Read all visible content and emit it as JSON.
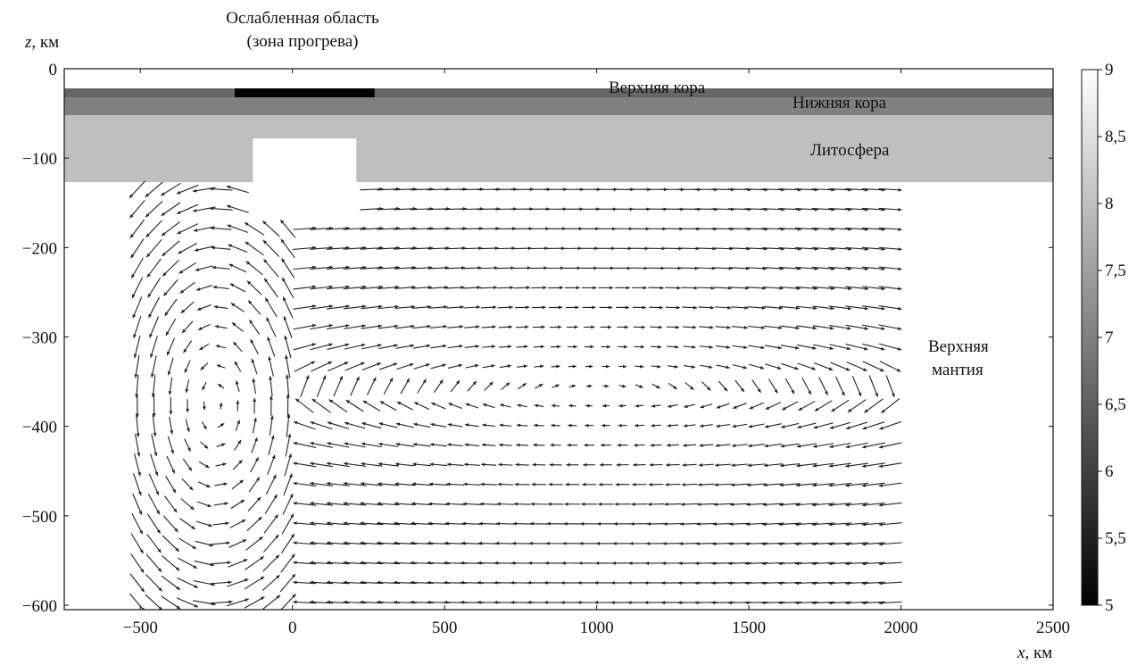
{
  "chart_data": {
    "type": "heatmap",
    "xlabel": {
      "var": "x",
      "unit": ", км"
    },
    "ylabel": {
      "var": "z",
      "unit": ", км"
    },
    "xlim": [
      -750,
      2500
    ],
    "ylim": [
      -605,
      0
    ],
    "x_ticks": [
      -500,
      0,
      500,
      1000,
      1500,
      2000,
      2500
    ],
    "x_tick_labels": [
      "−500",
      "0",
      "500",
      "1000",
      "1500",
      "2000",
      "2500"
    ],
    "y_ticks": [
      0,
      -100,
      -200,
      -300,
      -400,
      -500,
      -600
    ],
    "y_tick_labels": [
      "0",
      "−100",
      "−200",
      "−300",
      "−400",
      "−500",
      "−600"
    ],
    "colorbar": {
      "range": [
        5,
        9
      ],
      "ticks": [
        5,
        5.5,
        6,
        6.5,
        7,
        7.5,
        8,
        8.5,
        9
      ],
      "tick_labels": [
        "5",
        "5,5",
        "6",
        "6,5",
        "7",
        "7,5",
        "8",
        "8,5",
        "9"
      ]
    },
    "layers": [
      {
        "name": "Верхняя кора",
        "top": -22,
        "bottom": -32,
        "value": 6.6
      },
      {
        "name": "Нижняя кора",
        "top": -32,
        "bottom": -52,
        "value": 7.0
      },
      {
        "name": "Литосфера",
        "top": -52,
        "bottom": -127,
        "value": 8.0
      },
      {
        "name": "Верхняя мантия",
        "top": -127,
        "bottom": -605,
        "value": 9.0
      }
    ],
    "weak_zone": {
      "x": [
        -190,
        270
      ],
      "top": -22,
      "bottom": -32,
      "value": 5.0
    },
    "plume": {
      "x": [
        -130,
        210
      ],
      "top": -78,
      "bottom": -127,
      "value": 9.0
    },
    "annotations": [
      {
        "text": "Ослабленная область",
        "x": 30,
        "z": 55
      },
      {
        "text": "(зона прогрева)",
        "x": 30,
        "z": 30
      },
      {
        "text": "Верхняя кора",
        "x": 900,
        "z": -24
      },
      {
        "text": "Нижняя кора",
        "x": 1380,
        "z": -42
      },
      {
        "text": "Литосфера",
        "x": 1390,
        "z": -93
      },
      {
        "text": "Верхняя",
        "x": 1440,
        "z": -318
      },
      {
        "text": "мантия",
        "x": 1440,
        "z": -345
      }
    ],
    "velocity_field": {
      "x_range": [
        -510,
        2000
      ],
      "z_range": [
        -130,
        -600
      ],
      "cells": [
        {
          "center_x": -250,
          "center_z": -375,
          "x_range": [
            -510,
            230
          ],
          "sense": "clockwise"
        },
        {
          "center_x": 1000,
          "center_z": -360,
          "x_range": [
            0,
            2000
          ],
          "sense": "counterclockwise"
        }
      ]
    }
  }
}
